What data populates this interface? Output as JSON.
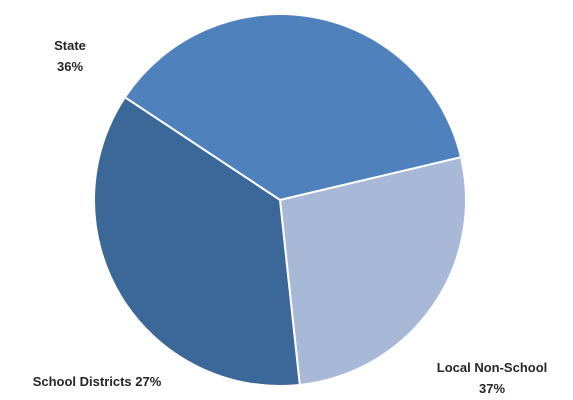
{
  "chart_data": {
    "type": "pie",
    "title": "",
    "categories": [
      "Local Non-School",
      "School Districts",
      "State"
    ],
    "values": [
      37,
      27,
      36
    ],
    "colors": [
      "#4f81bd",
      "#a8b9d8",
      "#3c6799"
    ],
    "labels": [
      {
        "lines": [
          "Local Non-School",
          "37%"
        ]
      },
      {
        "lines": [
          "School Districts 27%"
        ]
      },
      {
        "lines": [
          "State",
          "36%"
        ]
      }
    ],
    "legend": "none",
    "slice_border_color": "#ffffff"
  }
}
